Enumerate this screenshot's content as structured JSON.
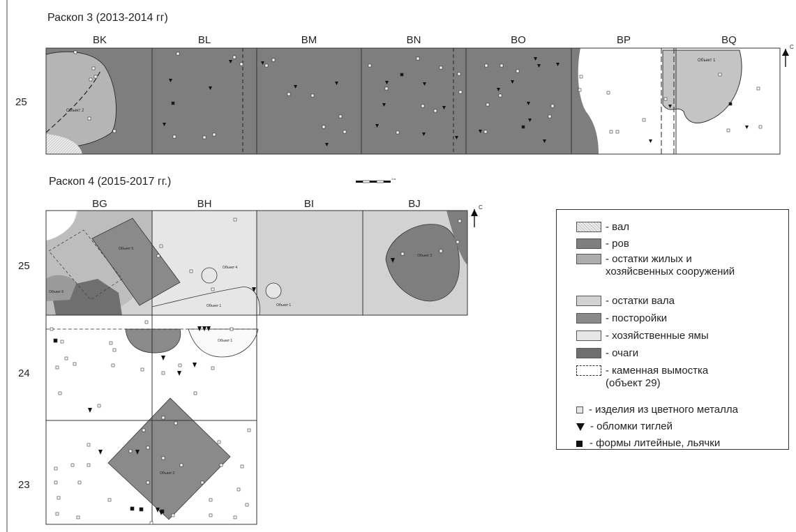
{
  "colors": {
    "rov": "#7e7e7e",
    "zhilye": "#adadad",
    "ostatki_vala": "#d2d2d2",
    "postroyki": "#8a8a8a",
    "yamy": "#e6e6e6",
    "ochagi": "#6f6f6f",
    "val": "#ececec",
    "lines": "#333333"
  },
  "sections": {
    "s3_title": "Раскоп 3 (2013-2014 гг)",
    "s4_title": "Раскоп 4 (2015-2017 гг.)"
  },
  "grid3": {
    "columns": [
      "BK",
      "BL",
      "BM",
      "BN",
      "BO",
      "BP",
      "BQ"
    ],
    "row": "25"
  },
  "grid4": {
    "columns": [
      "BG",
      "BH",
      "BI",
      "BJ"
    ],
    "rows": [
      "25",
      "24",
      "23"
    ]
  },
  "objects3": {
    "obj2": "Объект 2",
    "obj1": "Объект 1"
  },
  "north_label": "С",
  "scale_label": "1 м",
  "legend": [
    {
      "label": "- вал",
      "symbol": "val"
    },
    {
      "label": "- ров",
      "symbol": "rov"
    },
    {
      "label": "- остатки жилых и\nхозяйсвенных сооружений",
      "symbol": "zhilye"
    },
    {
      "label": "- остатки вала",
      "symbol": "ostatki_vala"
    },
    {
      "label": "- посторойки",
      "symbol": "postroyki"
    },
    {
      "label": "- хозяйственные ямы",
      "symbol": "yamy"
    },
    {
      "label": "- очаги",
      "symbol": "ochagi"
    },
    {
      "label": "- каменная вымостка\n(объект 29)",
      "symbol": "vymostka"
    },
    {
      "label": "- изделия из цветного металла",
      "symbol": "metal"
    },
    {
      "label": "- обломки тиглей",
      "symbol": "crucible"
    },
    {
      "label": "- формы литейные, льячки",
      "symbol": "mold"
    }
  ]
}
